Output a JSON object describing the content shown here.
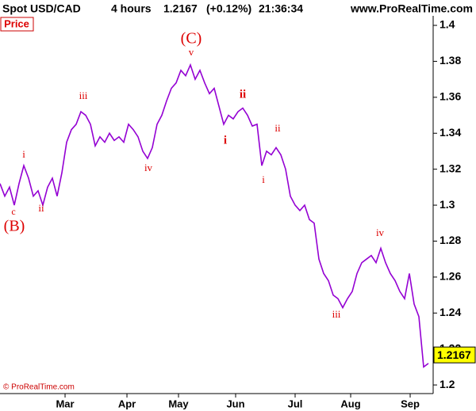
{
  "chart_data": {
    "type": "line",
    "header": {
      "symbol": "Spot USD/CAD",
      "period": "4 hours",
      "change": "(+0.12%)",
      "time": "21:36:34",
      "site": "www.ProRealTime.com"
    },
    "panel_label": "Price",
    "copyright": "© ProRealTime.com",
    "last_price": 1.2167,
    "series": [
      {
        "name": "Price",
        "color": "#9400d3",
        "values": [
          1.312,
          1.305,
          1.31,
          1.3,
          1.312,
          1.322,
          1.315,
          1.305,
          1.308,
          1.3,
          1.31,
          1.315,
          1.305,
          1.318,
          1.335,
          1.342,
          1.345,
          1.352,
          1.35,
          1.345,
          1.333,
          1.338,
          1.335,
          1.34,
          1.336,
          1.338,
          1.335,
          1.345,
          1.342,
          1.338,
          1.33,
          1.326,
          1.332,
          1.345,
          1.35,
          1.358,
          1.365,
          1.368,
          1.375,
          1.372,
          1.378,
          1.37,
          1.375,
          1.368,
          1.362,
          1.365,
          1.355,
          1.345,
          1.35,
          1.348,
          1.352,
          1.354,
          1.35,
          1.344,
          1.345,
          1.322,
          1.33,
          1.328,
          1.332,
          1.328,
          1.32,
          1.305,
          1.3,
          1.297,
          1.3,
          1.292,
          1.29,
          1.27,
          1.262,
          1.258,
          1.25,
          1.248,
          1.243,
          1.248,
          1.252,
          1.262,
          1.268,
          1.27,
          1.272,
          1.268,
          1.276,
          1.268,
          1.262,
          1.258,
          1.252,
          1.248,
          1.262,
          1.245,
          1.238,
          1.21,
          1.212
        ]
      }
    ],
    "xlim": [
      0,
      91
    ],
    "xticks": [
      {
        "value": 13.67,
        "label": "Mar"
      },
      {
        "value": 26.67,
        "label": "Apr"
      },
      {
        "value": 37.5,
        "label": "May"
      },
      {
        "value": 49.5,
        "label": "Jun"
      },
      {
        "value": 62,
        "label": "Jul"
      },
      {
        "value": 73.67,
        "label": "Aug"
      },
      {
        "value": 86.17,
        "label": "Sep"
      }
    ],
    "ylim": [
      1.1952,
      1.4053
    ],
    "yticks": [
      1.2,
      1.22,
      1.24,
      1.26,
      1.28,
      1.3,
      1.32,
      1.34,
      1.36,
      1.38,
      1.4
    ],
    "annotations": [
      "i",
      "iii",
      "c",
      "(B)",
      "ii",
      "iv",
      "(C)",
      "v",
      "ii",
      "i",
      "ii",
      "i",
      "iv",
      "iii"
    ]
  }
}
